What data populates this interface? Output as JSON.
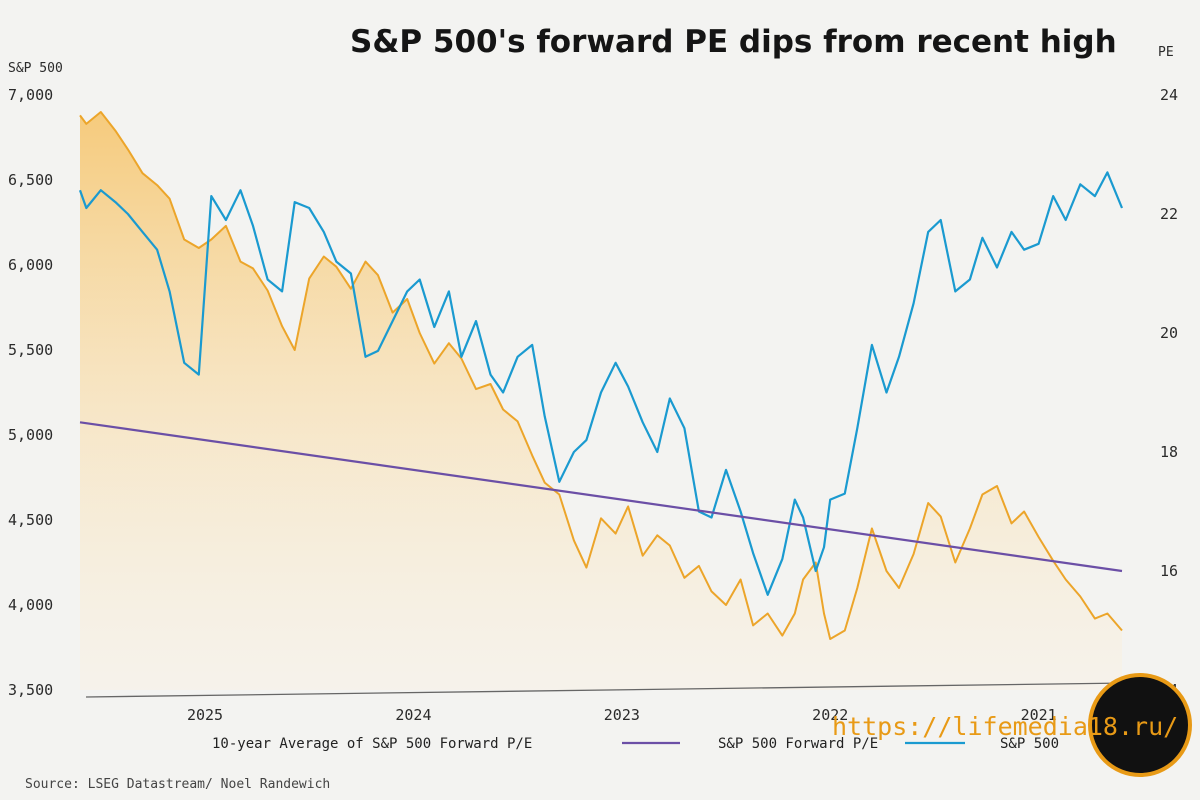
{
  "chart_data": {
    "type": "line",
    "title": "S&P 500's forward PE dips from recent high",
    "left_axis": {
      "unit_label": "S&P 500",
      "ticks": [
        "7,000",
        "6,500",
        "6,000",
        "5,500",
        "5,000",
        "4,500",
        "4,000",
        "3,500"
      ],
      "range": [
        3500,
        7000
      ]
    },
    "right_axis": {
      "unit_label": "PE",
      "ticks": [
        "24",
        "22",
        "20",
        "18",
        "16",
        "14"
      ],
      "range": [
        14,
        24
      ]
    },
    "x_axis": {
      "ticks": [
        "2025",
        "2024",
        "2023",
        "2022",
        "2021"
      ],
      "range": [
        2020.6,
        2025.6
      ],
      "reversed": true
    },
    "series": [
      {
        "name": "S&P 500 Forward P/E",
        "axis": "right",
        "color": "#1a9ad0",
        "x": [
          2020.6,
          2020.67,
          2020.73,
          2020.8,
          2020.87,
          2020.93,
          2021.0,
          2021.07,
          2021.13,
          2021.2,
          2021.27,
          2021.33,
          2021.4,
          2021.47,
          2021.53,
          2021.6,
          2021.67,
          2021.73,
          2021.8,
          2021.87,
          2021.93,
          2022.0,
          2022.03,
          2022.07,
          2022.13,
          2022.17,
          2022.23,
          2022.3,
          2022.37,
          2022.43,
          2022.5,
          2022.57,
          2022.63,
          2022.7,
          2022.77,
          2022.83,
          2022.9,
          2022.97,
          2023.03,
          2023.1,
          2023.17,
          2023.23,
          2023.3,
          2023.37,
          2023.43,
          2023.5,
          2023.57,
          2023.63,
          2023.7,
          2023.77,
          2023.83,
          2023.9,
          2023.97,
          2024.03,
          2024.1,
          2024.17,
          2024.23,
          2024.3,
          2024.37,
          2024.43,
          2024.5,
          2024.57,
          2024.63,
          2024.7,
          2024.77,
          2024.83,
          2024.9,
          2024.97,
          2025.03,
          2025.1,
          2025.17,
          2025.23,
          2025.3,
          2025.37,
          2025.43,
          2025.5,
          2025.57,
          2025.6
        ],
        "values": [
          22.1,
          22.7,
          22.3,
          22.5,
          21.9,
          22.3,
          21.5,
          21.4,
          21.7,
          21.1,
          21.6,
          20.9,
          20.7,
          21.9,
          21.7,
          20.5,
          19.6,
          19.0,
          19.8,
          18.4,
          17.3,
          17.2,
          16.4,
          16.0,
          16.9,
          17.2,
          16.2,
          15.6,
          16.3,
          17.0,
          17.7,
          16.9,
          17.0,
          18.4,
          18.9,
          18.0,
          18.5,
          19.1,
          19.5,
          19.0,
          18.2,
          18.0,
          17.5,
          18.6,
          19.8,
          19.6,
          19.0,
          19.3,
          20.2,
          19.6,
          20.7,
          20.1,
          20.9,
          20.7,
          20.2,
          19.7,
          19.6,
          21.0,
          21.2,
          21.7,
          22.1,
          22.2,
          20.7,
          20.9,
          21.8,
          22.4,
          21.9,
          22.3,
          19.3,
          19.5,
          20.7,
          21.4,
          21.7,
          22.0,
          22.2,
          22.4,
          22.1,
          22.4
        ]
      },
      {
        "name": "10-year Average of S&P 500 Forward P/E",
        "axis": "right",
        "color": "#6b4fa6",
        "x": [
          2020.6,
          2025.6
        ],
        "values": [
          16.0,
          18.5
        ]
      },
      {
        "name": "S&P 500",
        "axis": "left",
        "color": "#eca52a",
        "x": [
          2020.6,
          2020.67,
          2020.73,
          2020.8,
          2020.87,
          2020.93,
          2021.0,
          2021.07,
          2021.13,
          2021.2,
          2021.27,
          2021.33,
          2021.4,
          2021.47,
          2021.53,
          2021.6,
          2021.67,
          2021.73,
          2021.8,
          2021.87,
          2021.93,
          2022.0,
          2022.03,
          2022.07,
          2022.13,
          2022.17,
          2022.23,
          2022.3,
          2022.37,
          2022.43,
          2022.5,
          2022.57,
          2022.63,
          2022.7,
          2022.77,
          2022.83,
          2022.9,
          2022.97,
          2023.03,
          2023.1,
          2023.17,
          2023.23,
          2023.3,
          2023.37,
          2023.43,
          2023.5,
          2023.57,
          2023.63,
          2023.7,
          2023.77,
          2023.83,
          2023.9,
          2023.97,
          2024.03,
          2024.1,
          2024.17,
          2024.23,
          2024.3,
          2024.37,
          2024.43,
          2024.5,
          2024.57,
          2024.63,
          2024.7,
          2024.77,
          2024.83,
          2024.9,
          2024.97,
          2025.03,
          2025.1,
          2025.17,
          2025.23,
          2025.3,
          2025.37,
          2025.43,
          2025.5,
          2025.57,
          2025.6
        ],
        "values": [
          3850,
          3950,
          3920,
          4050,
          4150,
          4260,
          4400,
          4550,
          4480,
          4700,
          4650,
          4450,
          4250,
          4520,
          4600,
          4300,
          4100,
          4200,
          4450,
          4100,
          3850,
          3800,
          3950,
          4250,
          4150,
          3950,
          3820,
          3950,
          3880,
          4150,
          4000,
          4080,
          4230,
          4160,
          4350,
          4410,
          4290,
          4580,
          4420,
          4510,
          4220,
          4380,
          4650,
          4720,
          4880,
          5080,
          5150,
          5300,
          5270,
          5450,
          5540,
          5420,
          5600,
          5800,
          5720,
          5940,
          6020,
          5860,
          5990,
          6050,
          5920,
          5500,
          5640,
          5850,
          5980,
          6020,
          6230,
          6150,
          6100,
          6150,
          6390,
          6470,
          6540,
          6680,
          6790,
          6900,
          6830,
          6880
        ]
      }
    ],
    "legend": {
      "position": "bottom",
      "entries": [
        {
          "label": "S&P 500",
          "color": "#eca52a"
        },
        {
          "label": "S&P 500 Forward P/E",
          "color": "#1a9ad0"
        },
        {
          "label": "10-year Average of S&P 500 Forward P/E",
          "color": "#6b4fa6"
        }
      ]
    },
    "source": "Source: LSEG Datastream/ Noel Randewich",
    "watermark": "https://lifemedia18.ru/"
  }
}
